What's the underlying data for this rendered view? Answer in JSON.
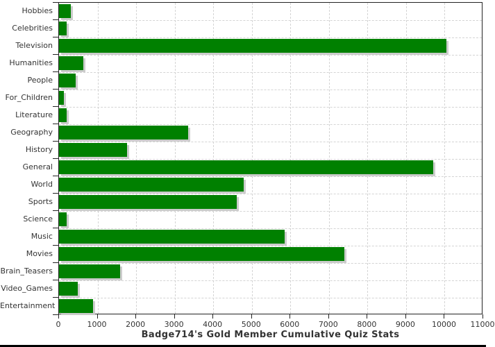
{
  "chart_data": {
    "type": "bar",
    "orientation": "horizontal",
    "title": "Badge714's Gold Member Cumulative Quiz Stats",
    "categories": [
      "Hobbies",
      "Celebrities",
      "Television",
      "Humanities",
      "People",
      "For_Children",
      "Literature",
      "Geography",
      "History",
      "General",
      "World",
      "Sports",
      "Science",
      "Music",
      "Movies",
      "Brain_Teasers",
      "Video_Games",
      "Entertainment"
    ],
    "values": [
      300,
      190,
      10050,
      625,
      425,
      130,
      200,
      3350,
      1770,
      9700,
      4790,
      4600,
      200,
      5860,
      7400,
      1590,
      480,
      880
    ],
    "xlim": [
      0,
      11000
    ],
    "x_tick_labels": [
      "0",
      "1000",
      "2000",
      "3000",
      "4000",
      "5000",
      "6000",
      "7000",
      "8000",
      "9000",
      "10000",
      "11000"
    ],
    "grid": "dashed",
    "legend": "none",
    "bar_color": "#008000",
    "shadow_color": "#cccccc",
    "gridline_color": "#d4d4d4",
    "axis_color": "#222222",
    "text_color": "#333333"
  }
}
